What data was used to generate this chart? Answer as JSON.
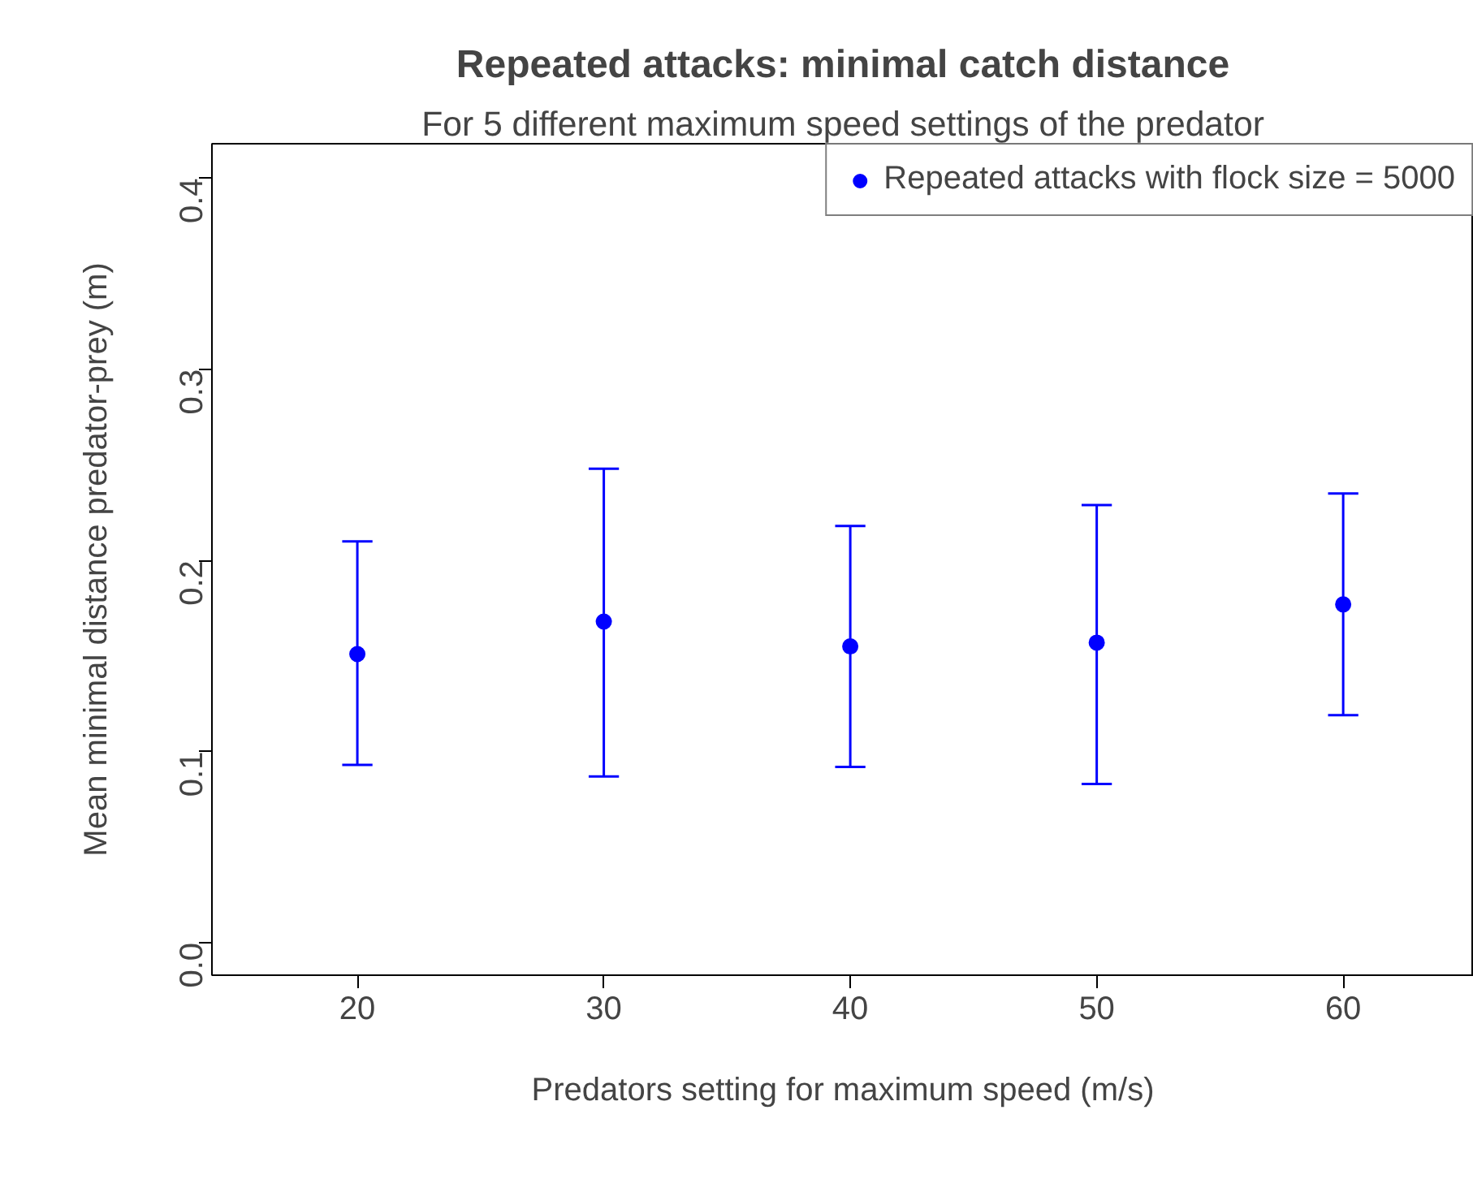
{
  "chart_data": {
    "type": "scatter",
    "title": "Repeated attacks: minimal catch distance",
    "subtitle": "For 5 different maximum speed settings of the predator",
    "xlabel": "Predators setting for maximum speed (m/s)",
    "ylabel": "Mean minimal distance predator-prey (m)",
    "x": [
      20,
      30,
      40,
      50,
      60
    ],
    "series": [
      {
        "name": "Repeated attacks with flock size = 5000",
        "color": "#0000ff",
        "values": [
          0.151,
          0.168,
          0.155,
          0.157,
          0.177
        ],
        "errors": [
          [
            0.093,
            0.21
          ],
          [
            0.087,
            0.248
          ],
          [
            0.092,
            0.218
          ],
          [
            0.083,
            0.229
          ],
          [
            0.119,
            0.235
          ]
        ]
      }
    ],
    "xlim": [
      14.1,
      65.3
    ],
    "ylim": [
      -0.017,
      0.418
    ],
    "xticks": [
      20,
      30,
      40,
      50,
      60
    ],
    "yticks": [
      {
        "value": 0,
        "label": "0.0"
      },
      {
        "value": 0.1,
        "label": "0.1"
      },
      {
        "value": 0.2,
        "label": "0.2"
      },
      {
        "value": 0.3,
        "label": "0.3"
      },
      {
        "value": 0.4,
        "label": "0.4"
      }
    ],
    "grid": false,
    "legend": "top right",
    "marker": "circle"
  }
}
